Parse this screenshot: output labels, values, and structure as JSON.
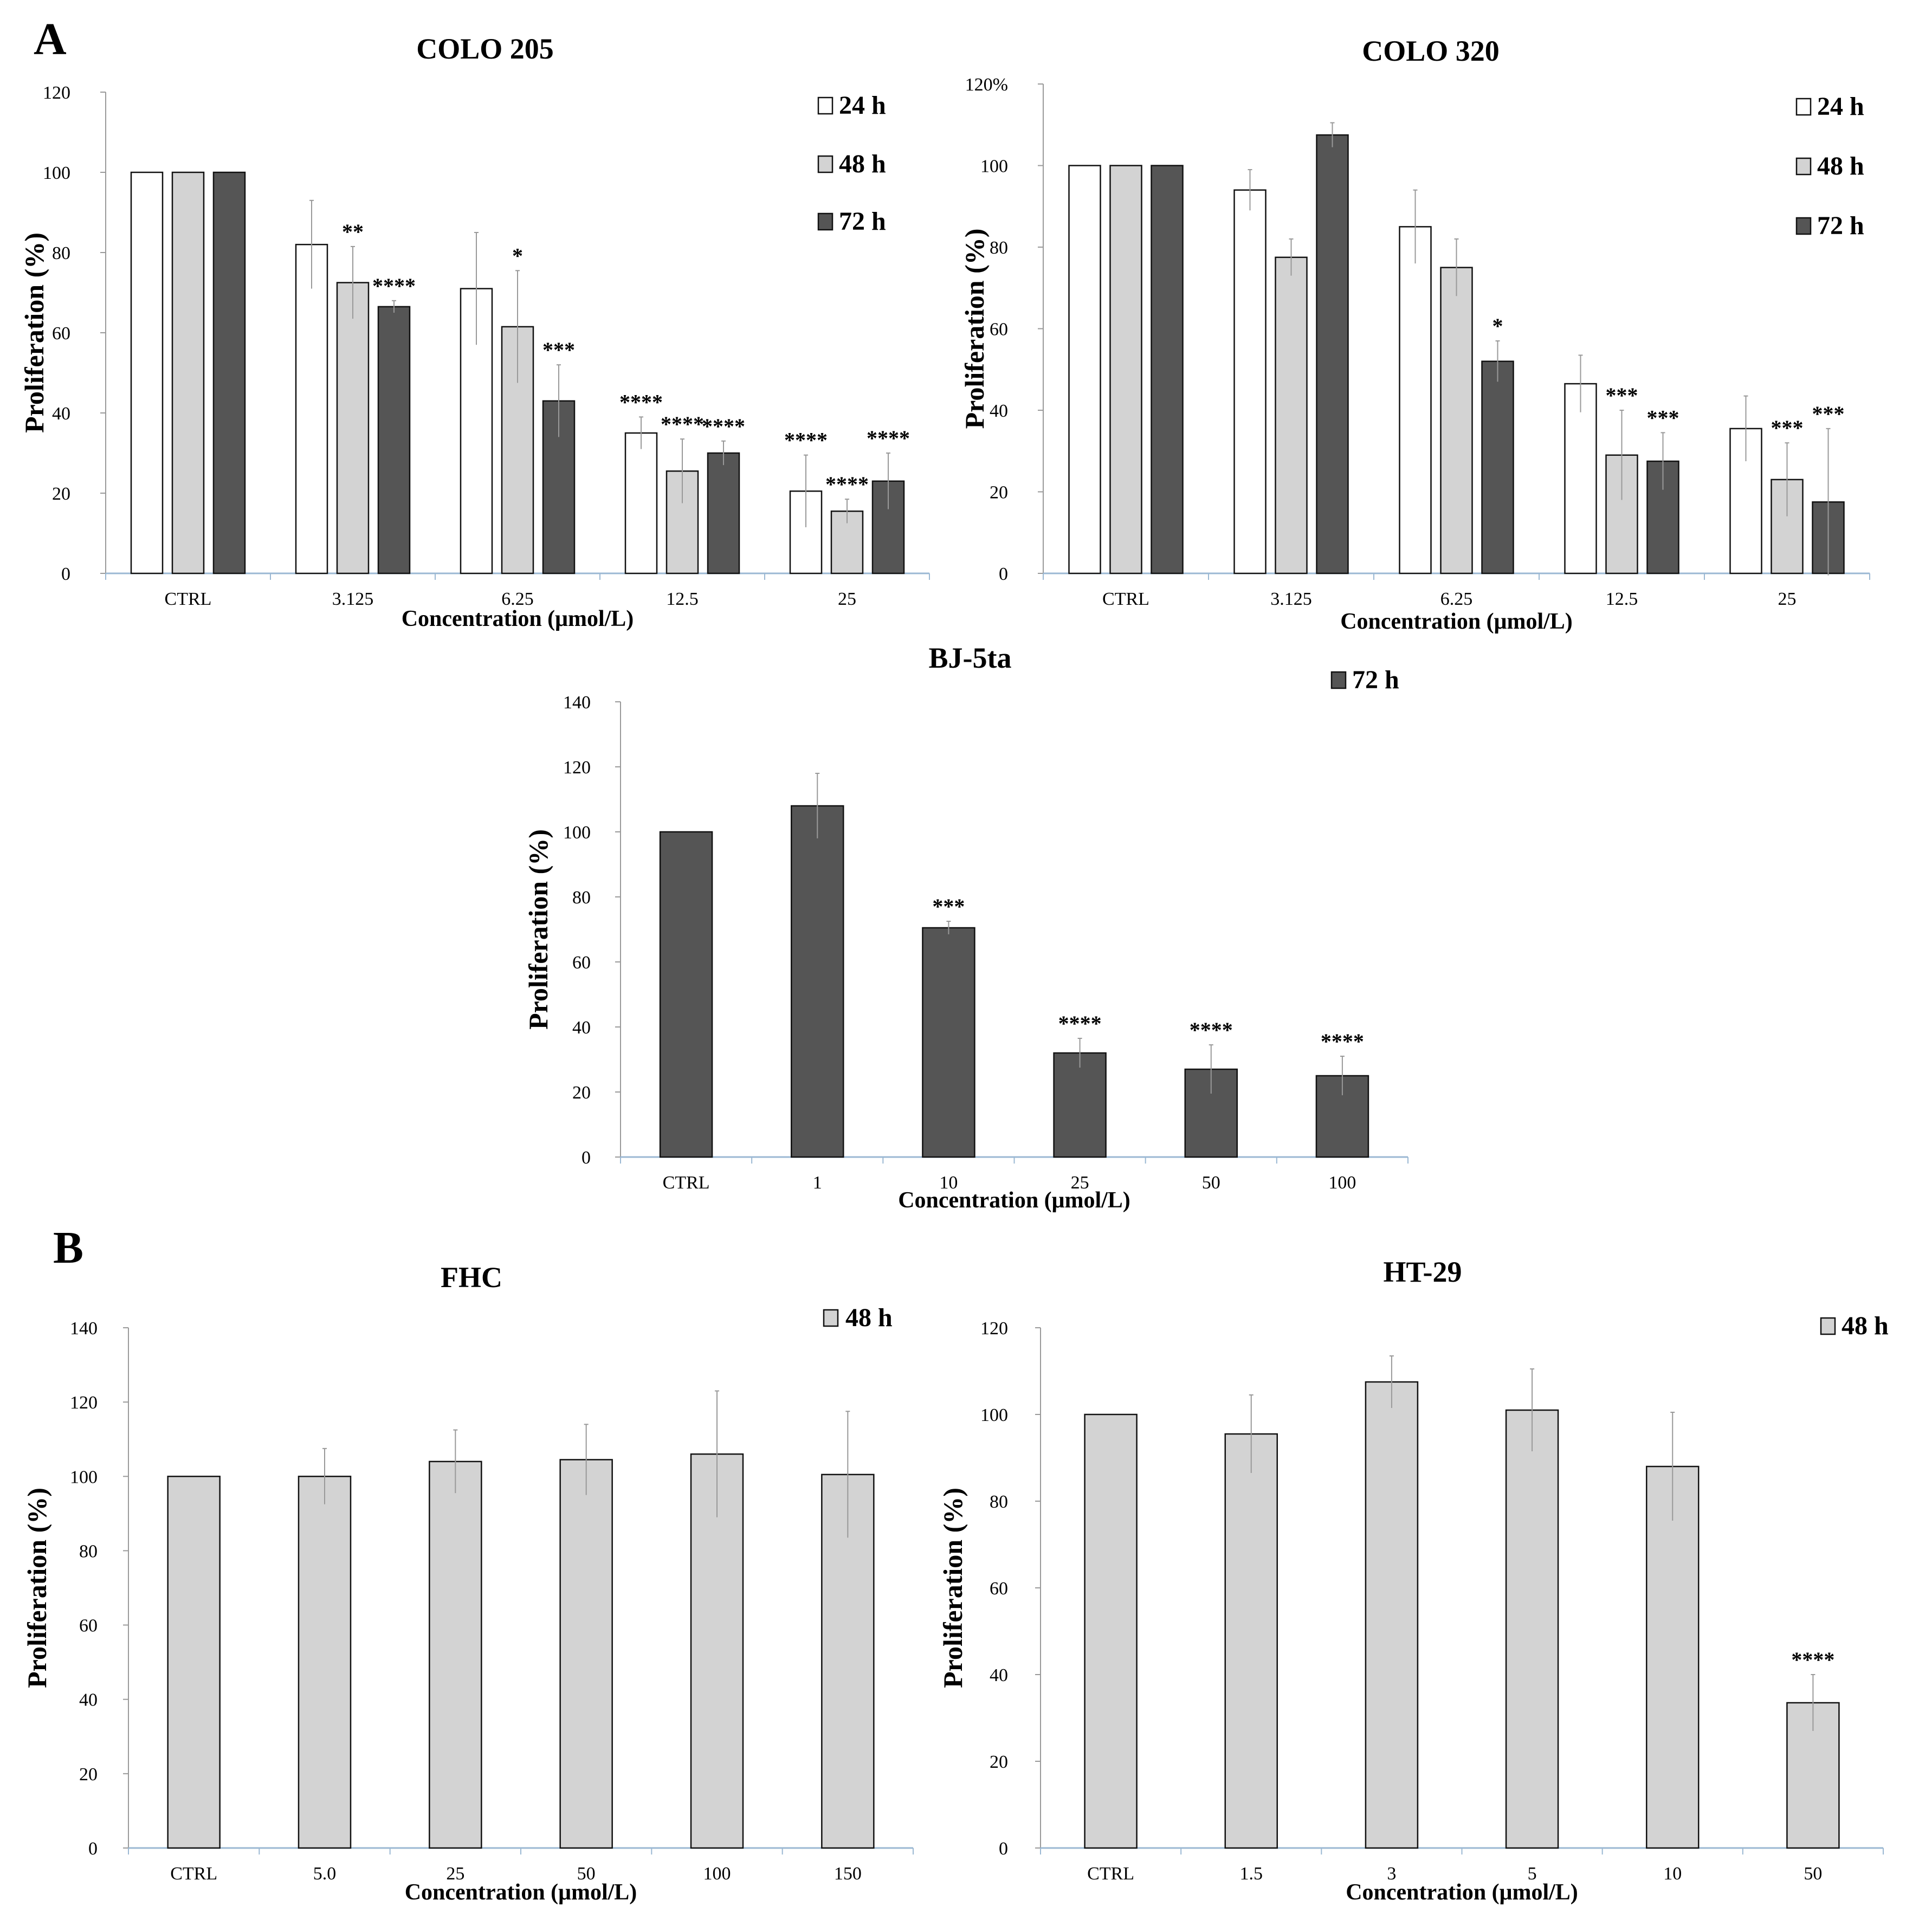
{
  "panels": [
    {
      "id": "A",
      "label": "A"
    },
    {
      "id": "B",
      "label": "B"
    }
  ],
  "colors": {
    "24 h": "#ffffff",
    "48 h": "#d3d3d3",
    "72 h": "#555555",
    "axis": "#9bb8d3",
    "error": "#999999"
  },
  "chart_data": [
    {
      "id": "colo205",
      "type": "bar",
      "title": "COLO 205",
      "xlabel": "Concentration (μmol/L)",
      "ylabel": "Proliferation (%)",
      "ylim": [
        0,
        120
      ],
      "yticks": [
        "0",
        "20",
        "40",
        "60",
        "80",
        "100",
        "120"
      ],
      "categories": [
        "CTRL",
        "3.125",
        "6.25",
        "12.5",
        "25"
      ],
      "legend_placement": "top-right",
      "legend": [
        "24 h",
        "48 h",
        "72 h"
      ],
      "series": [
        {
          "name": "24 h",
          "values": [
            100,
            82,
            71,
            35,
            20.5
          ],
          "errors": [
            0,
            11,
            14,
            4,
            9
          ],
          "sig": [
            "",
            "",
            "",
            "****",
            "****"
          ]
        },
        {
          "name": "48 h",
          "values": [
            100,
            72.5,
            61.5,
            25.5,
            15.5
          ],
          "errors": [
            0,
            9,
            14,
            8,
            3
          ],
          "sig": [
            "",
            "**",
            "*",
            "****",
            "****"
          ]
        },
        {
          "name": "72 h",
          "values": [
            100,
            66.5,
            43,
            30,
            23
          ],
          "errors": [
            0,
            1.5,
            9,
            3,
            7
          ],
          "sig": [
            "",
            "****",
            "***",
            "****",
            "****"
          ]
        }
      ]
    },
    {
      "id": "colo320",
      "type": "bar",
      "title": "COLO 320",
      "xlabel": "Concentration (μmol/L)",
      "ylabel": "Proliferation (%)",
      "ylim": [
        0,
        120
      ],
      "yticks": [
        "0",
        "20",
        "40",
        "60",
        "80",
        "100",
        "120%"
      ],
      "categories": [
        "CTRL",
        "3.125",
        "6.25",
        "12.5",
        "25"
      ],
      "legend_placement": "top-right",
      "legend": [
        "24 h",
        "48 h",
        "72 h"
      ],
      "series": [
        {
          "name": "24 h",
          "values": [
            100,
            94,
            85,
            46.5,
            35.5
          ],
          "errors": [
            0,
            5,
            9,
            7,
            8
          ],
          "sig": [
            "",
            "",
            "",
            "",
            ""
          ]
        },
        {
          "name": "48 h",
          "values": [
            100,
            77.5,
            75,
            29,
            23
          ],
          "errors": [
            0,
            4.5,
            7,
            11,
            9
          ],
          "sig": [
            "",
            "",
            "",
            "***",
            "***"
          ]
        },
        {
          "name": "72 h",
          "values": [
            100,
            107.5,
            52,
            27.5,
            17.5
          ],
          "errors": [
            0,
            3,
            5,
            7,
            18
          ],
          "sig": [
            "",
            "",
            "*",
            "***",
            "***"
          ]
        }
      ]
    },
    {
      "id": "bj5ta",
      "type": "bar",
      "title": "BJ-5ta",
      "xlabel": "Concentration (μmol/L)",
      "ylabel": "Proliferation (%)",
      "ylim": [
        0,
        140
      ],
      "yticks": [
        "0",
        "20",
        "40",
        "60",
        "80",
        "100",
        "120",
        "140"
      ],
      "categories": [
        "CTRL",
        "1",
        "10",
        "25",
        "50",
        "100"
      ],
      "legend_placement": "top-right",
      "legend": [
        "72 h"
      ],
      "series": [
        {
          "name": "72 h",
          "values": [
            100,
            108,
            70.5,
            32,
            27,
            25
          ],
          "errors": [
            0,
            10,
            2,
            4.5,
            7.5,
            6
          ],
          "sig": [
            "",
            "",
            "***",
            "****",
            "****",
            "****"
          ]
        }
      ]
    },
    {
      "id": "fhc",
      "type": "bar",
      "title": "FHC",
      "xlabel": "Concentration (μmol/L)",
      "ylabel": "Proliferation (%)",
      "ylim": [
        0,
        140
      ],
      "yticks": [
        "0",
        "20",
        "40",
        "60",
        "80",
        "100",
        "120",
        "140"
      ],
      "categories": [
        "CTRL",
        "5.0",
        "25",
        "50",
        "100",
        "150"
      ],
      "legend_placement": "top-right",
      "legend": [
        "48 h"
      ],
      "series": [
        {
          "name": "48 h",
          "values": [
            100,
            100,
            104,
            104.5,
            106,
            100.5
          ],
          "errors": [
            0,
            7.5,
            8.5,
            9.5,
            17,
            17
          ],
          "sig": [
            "",
            "",
            "",
            "",
            "",
            ""
          ]
        }
      ]
    },
    {
      "id": "ht29",
      "type": "bar",
      "title": "HT-29",
      "xlabel": "Concentration (μmol/L)",
      "ylabel": "Proliferation (%)",
      "ylim": [
        0,
        120
      ],
      "yticks": [
        "0",
        "20",
        "40",
        "60",
        "80",
        "100",
        "120"
      ],
      "categories": [
        "CTRL",
        "1.5",
        "3",
        "5",
        "10",
        "50"
      ],
      "legend_placement": "top-right",
      "legend": [
        "48 h"
      ],
      "series": [
        {
          "name": "48 h",
          "values": [
            100,
            95.5,
            107.5,
            101,
            88,
            33.5
          ],
          "errors": [
            0,
            9,
            6,
            9.5,
            12.5,
            6.5
          ],
          "sig": [
            "",
            "",
            "",
            "",
            "",
            "****"
          ]
        }
      ]
    }
  ]
}
